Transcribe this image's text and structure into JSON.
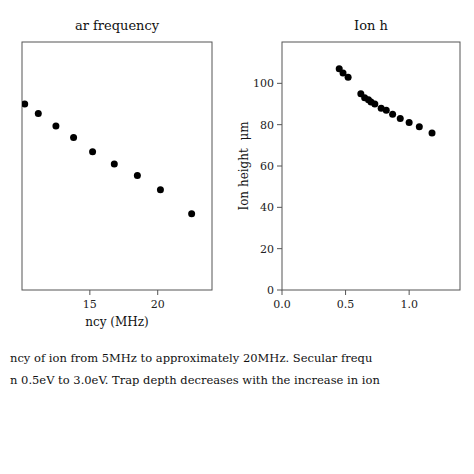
{
  "chart_data": [
    {
      "type": "scatter",
      "title": "ar frequency",
      "xlabel": "ncy (MHz)",
      "x": [
        10.2,
        11.2,
        12.5,
        13.8,
        15.2,
        16.8,
        18.5,
        20.2,
        22.5
      ],
      "values": [
        63.5,
        62.5,
        61.2,
        60.0,
        58.5,
        57.2,
        56.0,
        54.5,
        52.0
      ],
      "color": "#000000",
      "xlim": [
        10,
        24
      ],
      "ylim": [
        44,
        70
      ],
      "xticks": [
        15,
        20
      ],
      "yticks": [],
      "tick_labels": "x",
      "annotations": [
        "ncy of ion from 5MHz to approximately 20MHz. Secular frequ",
        "n 0.5eV to 3.0eV. Trap depth decreases with the increase in ion"
      ]
    },
    {
      "type": "scatter",
      "title": "Ion h",
      "ylabel": "Ion height  μm",
      "x": [
        0.45,
        0.48,
        0.52,
        0.62,
        0.65,
        0.68,
        0.7,
        0.73,
        0.78,
        0.82,
        0.87,
        0.93,
        1.0,
        1.08,
        1.18
      ],
      "values": [
        107,
        105,
        103,
        95,
        93,
        92,
        91,
        90,
        88,
        87,
        85,
        83,
        81,
        79,
        76
      ],
      "color": "#000000",
      "xlim": [
        0.0,
        1.4
      ],
      "ylim": [
        0,
        120
      ],
      "xticks": [
        {
          "value": 0.0,
          "label": "0.0"
        },
        0.5,
        {
          "value": 1.0,
          "label": "1.0"
        }
      ],
      "yticks": [
        0,
        20,
        40,
        60,
        80,
        100
      ]
    }
  ]
}
